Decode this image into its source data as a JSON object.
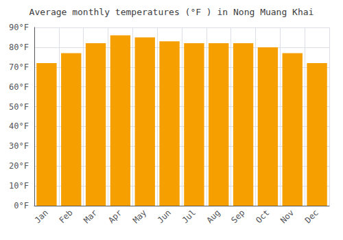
{
  "chart_data": {
    "type": "bar",
    "title": "Average monthly temperatures (°F ) in Nong Muang Khai",
    "categories": [
      "Jan",
      "Feb",
      "Mar",
      "Apr",
      "May",
      "Jun",
      "Jul",
      "Aug",
      "Sep",
      "Oct",
      "Nov",
      "Dec"
    ],
    "values": [
      72,
      77,
      82,
      86,
      85,
      83,
      82,
      82,
      82,
      80,
      77,
      72
    ],
    "color": "#F5A000",
    "ylim": [
      0,
      90
    ],
    "yticks": [
      {
        "value": 0,
        "label": "0°F"
      },
      {
        "value": 10,
        "label": "10°F"
      },
      {
        "value": 20,
        "label": "20°F"
      },
      {
        "value": 30,
        "label": "30°F"
      },
      {
        "value": 40,
        "label": "40°F"
      },
      {
        "value": 50,
        "label": "50°F"
      },
      {
        "value": 60,
        "label": "60°F"
      },
      {
        "value": 70,
        "label": "70°F"
      },
      {
        "value": 80,
        "label": "80°F"
      },
      {
        "value": 90,
        "label": "90°F"
      }
    ],
    "grid": true
  }
}
